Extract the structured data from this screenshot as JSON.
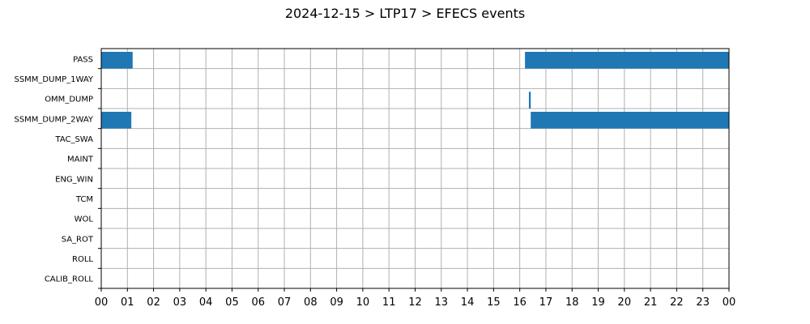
{
  "chart_data": {
    "type": "bar",
    "orientation": "horizontal-timeline",
    "title": "2024-12-15 > LTP17 > EFECS events",
    "xlabel": "",
    "ylabel": "",
    "x_unit": "hour of day",
    "xlim": [
      0,
      24
    ],
    "x_tick_labels": [
      "00",
      "01",
      "02",
      "03",
      "04",
      "05",
      "06",
      "07",
      "08",
      "09",
      "10",
      "11",
      "12",
      "13",
      "14",
      "15",
      "16",
      "17",
      "18",
      "19",
      "20",
      "21",
      "22",
      "23",
      "00"
    ],
    "categories": [
      "PASS",
      "SSMM_DUMP_1WAY",
      "OMM_DUMP",
      "SSMM_DUMP_2WAY",
      "TAC_SWA",
      "MAINT",
      "ENG_WIN",
      "TCM",
      "WOL",
      "SA_ROT",
      "ROLL",
      "CALIB_ROLL"
    ],
    "grid": true,
    "bar_color": "#1f77b4",
    "events": [
      {
        "category": "PASS",
        "start": 0.0,
        "end": 1.2
      },
      {
        "category": "PASS",
        "start": 16.2,
        "end": 24.0
      },
      {
        "category": "OMM_DUMP",
        "start": 16.35,
        "end": 16.42
      },
      {
        "category": "SSMM_DUMP_2WAY",
        "start": 0.0,
        "end": 1.15
      },
      {
        "category": "SSMM_DUMP_2WAY",
        "start": 16.42,
        "end": 24.0
      }
    ]
  }
}
